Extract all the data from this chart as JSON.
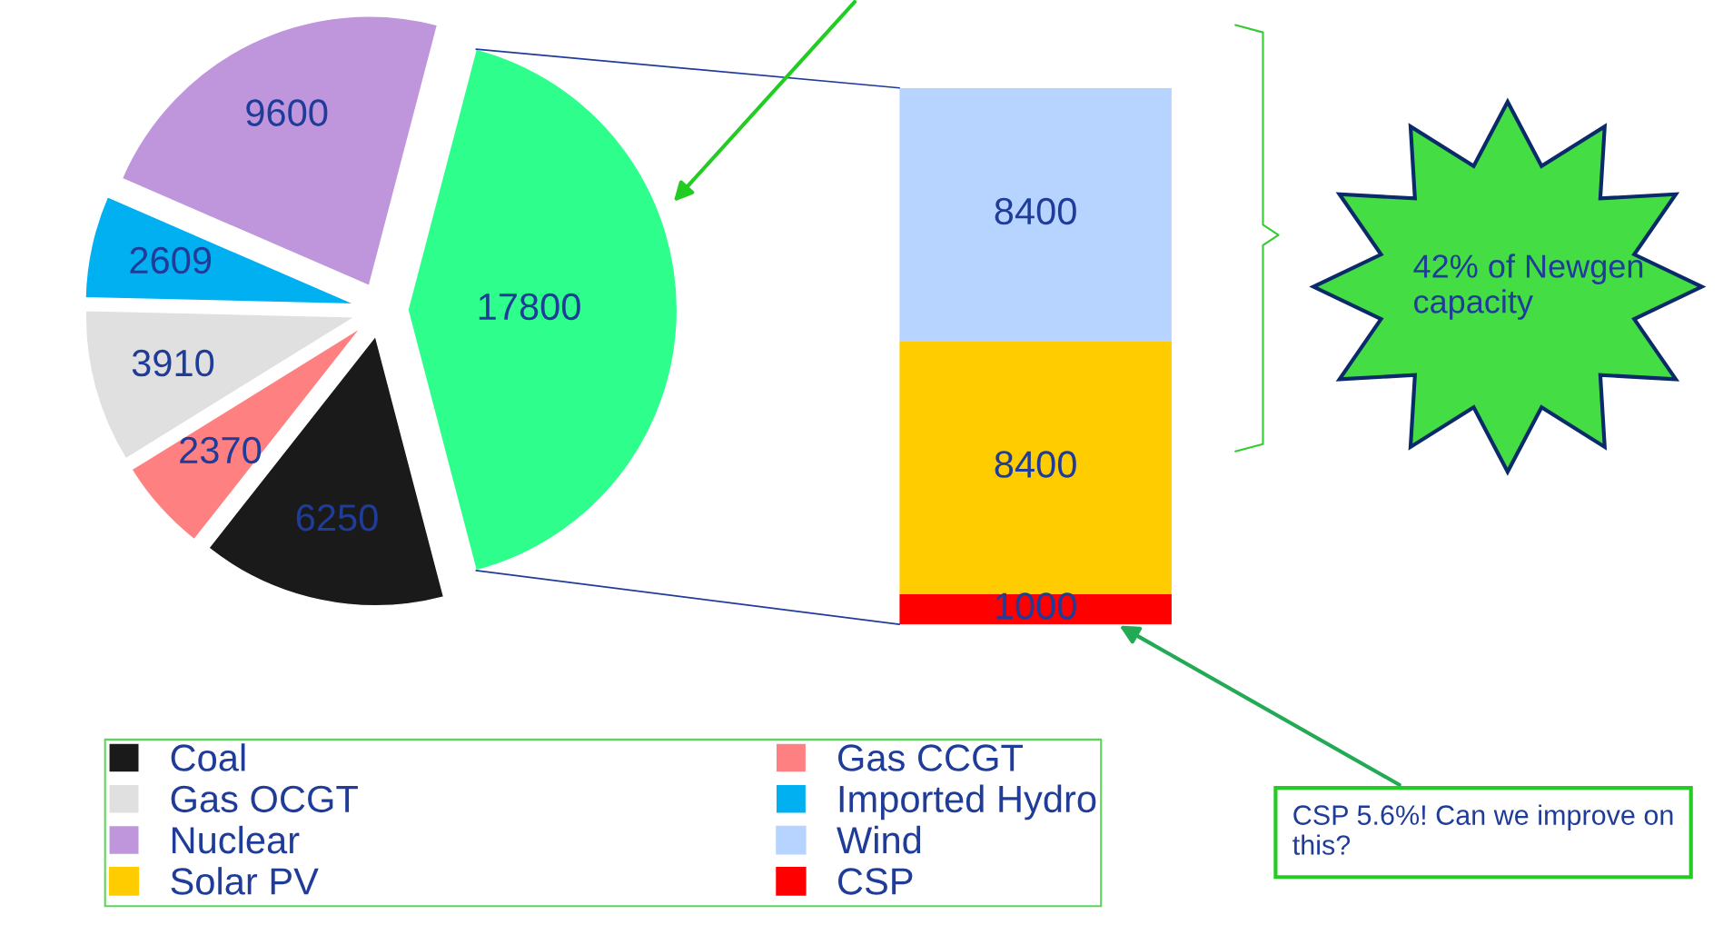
{
  "chart_data": [
    {
      "type": "pie",
      "categories": [
        "Coal",
        "Gas CCGT",
        "Gas OCGT",
        "Imported Hydro",
        "Nuclear",
        null
      ],
      "values": [
        6250,
        2370,
        3910,
        2609,
        9600,
        17800
      ],
      "colors": [
        "#1a1a1a",
        "#ff8080",
        "#e0e0e0",
        "#00b0f0",
        "#bf96dc",
        "#2eff8c"
      ],
      "data_labels": true,
      "legend": "bottom"
    },
    {
      "type": "bar",
      "stacked": true,
      "categories": [
        null
      ],
      "series": [
        {
          "name": "CSP",
          "color": "#ff0000",
          "values": [
            1000
          ]
        },
        {
          "name": "Solar PV",
          "color": "#ffcc00",
          "values": [
            8400
          ]
        },
        {
          "name": "Wind",
          "color": "#b7d3ff",
          "values": [
            8400
          ]
        }
      ],
      "data_labels": true,
      "legend": "bottom",
      "annotations": [
        "42% of Newgen capacity",
        "CSP 5.6%! Can we improve on this?"
      ]
    }
  ]
}
